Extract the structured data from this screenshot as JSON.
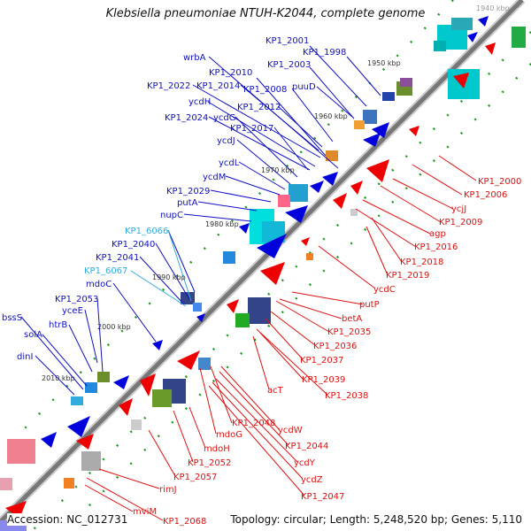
{
  "title": "Klebsiella pneumoniae NTUH-K2044, complete genome",
  "accession_label": "Accession: NC_012731",
  "summary_label": "Topology: circular; Length: 5,248,520 bp; Genes: 5,110",
  "colors": {
    "backbone": "#8c8c8c",
    "forward_gene": "#0000dd",
    "reverse_gene": "#ee0000",
    "cyan_feature": "#00cccc",
    "tick": "#228822",
    "label_forward": "#1010c0",
    "label_reverse": "#dd1010",
    "label_alt": "#33aadd"
  },
  "kbp_ticks": [
    "1940 kbp",
    "1950 kbp",
    "1960 kbp",
    "1970 kbp",
    "1980 kbp",
    "1990 kbp",
    "2000 kbp",
    "2010 kbp"
  ],
  "labels_upper": [
    "KP1_2001",
    "KP1_1998",
    "wrbA",
    "KP1_2003",
    "KP1_2010",
    "KP1_2022",
    "KP1_2014",
    "KP1_2008",
    "puuD",
    "ycdH",
    "KP1_2012",
    "KP1_2024",
    "ycdG",
    "KP1_2017",
    "ycdJ",
    "ycdL",
    "ycdM",
    "KP1_2029",
    "putA",
    "nupC",
    "KP1_6066",
    "KP1_2040",
    "KP1_2041",
    "KP1_6067",
    "mdoC",
    "KP1_2053",
    "bssS",
    "yceE",
    "solA",
    "htrB",
    "dinI"
  ],
  "labels_alt": [
    "KP1_6066",
    "KP1_6067"
  ],
  "labels_lower": [
    "KP1_2000",
    "KP1_2006",
    "ycjJ",
    "KP1_2009",
    "agp",
    "KP1_2016",
    "KP1_2018",
    "KP1_2019",
    "ycdC",
    "putP",
    "betA",
    "KP1_2035",
    "KP1_2036",
    "KP1_2037",
    "KP1_2039",
    "acT",
    "KP1_2038",
    "KP1_2048",
    "ycdW",
    "mdoG",
    "KP1_2044",
    "mdoH",
    "ycdY",
    "KP1_2052",
    "ycdZ",
    "KP1_2057",
    "KP1_2047",
    "rimJ",
    "mviM",
    "KP1_2068"
  ]
}
